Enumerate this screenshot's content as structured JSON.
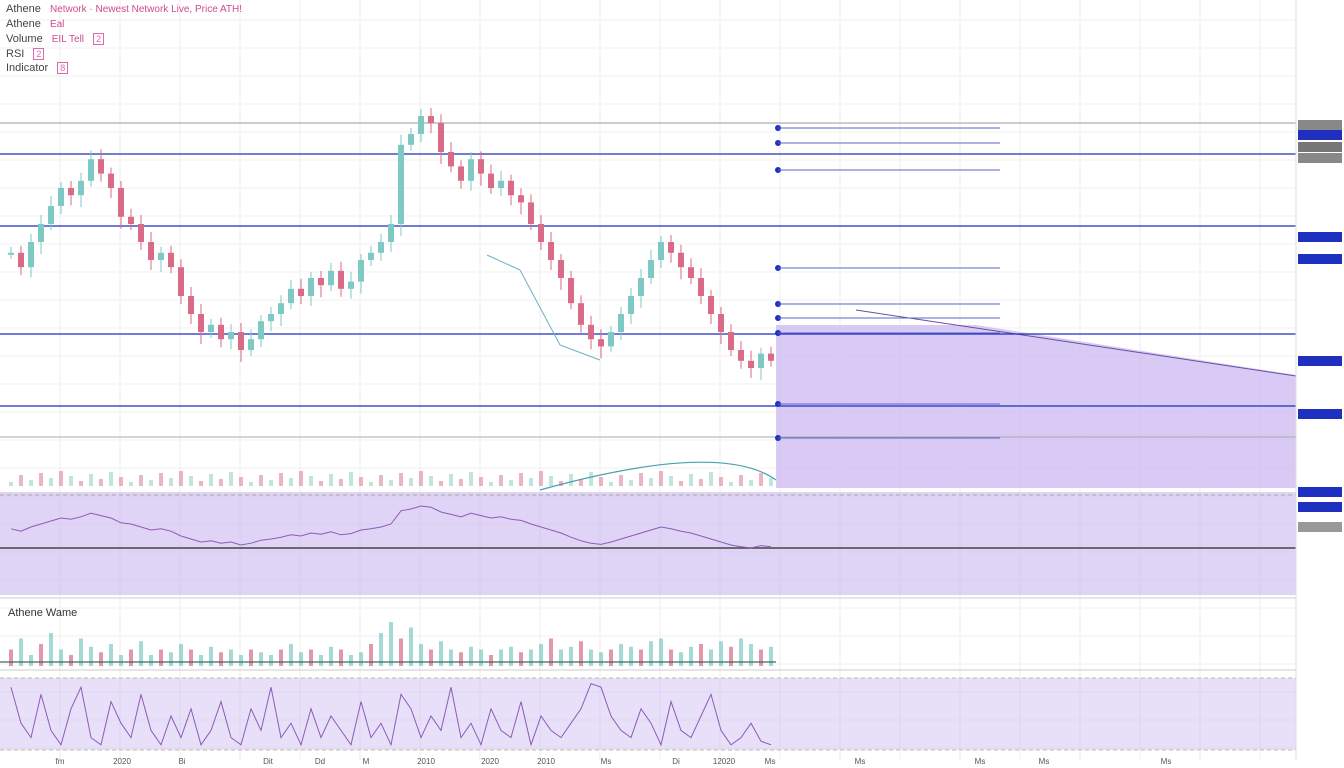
{
  "header": {
    "lines": [
      {
        "symbol": "Athene",
        "text": "Network · Newest Network Live, Price ATH!",
        "vals": "",
        "badge": ""
      },
      {
        "symbol": "Athene",
        "text": "",
        "vals": "Eal",
        "badge": ""
      },
      {
        "symbol": "Volume",
        "text": "",
        "vals": "EIL Tell",
        "badge": "2"
      },
      {
        "symbol": "RSI",
        "text": "",
        "vals": "",
        "badge": "2"
      },
      {
        "symbol": "Indicator",
        "text": "",
        "vals": "",
        "badge": "8"
      }
    ]
  },
  "panes": {
    "volume_label": "Athene Wame"
  },
  "price_axis": {
    "labels": [
      "",
      "",
      "",
      "",
      "",
      "",
      "",
      "",
      "",
      "",
      "",
      "",
      "",
      "",
      "",
      "",
      "",
      "",
      "",
      ""
    ]
  },
  "time_axis": {
    "labels": [
      "fm",
      "2020",
      "Bi",
      "Dit",
      "Dd",
      "M",
      "2010",
      "2020",
      "2010",
      "Ms",
      "Di",
      "12020",
      "Ms",
      "Ms",
      "Ms",
      "Ms",
      "Ms"
    ]
  },
  "colors": {
    "up": "#7fc9c4",
    "down": "#d96b86",
    "line_blue": "#1f2fbf",
    "purple_fill": "#cbb8f0",
    "rsi_line": "#8c5bb8",
    "gray_line": "#888888"
  },
  "chart_data": {
    "type": "candlestick",
    "note": "",
    "candles_close_shape": [
      0.52,
      0.48,
      0.55,
      0.6,
      0.65,
      0.7,
      0.68,
      0.72,
      0.78,
      0.74,
      0.7,
      0.62,
      0.6,
      0.55,
      0.5,
      0.52,
      0.48,
      0.4,
      0.35,
      0.3,
      0.32,
      0.28,
      0.3,
      0.25,
      0.28,
      0.33,
      0.35,
      0.38,
      0.42,
      0.4,
      0.45,
      0.43,
      0.47,
      0.42,
      0.44,
      0.5,
      0.52,
      0.55,
      0.6,
      0.82,
      0.85,
      0.9,
      0.88,
      0.8,
      0.76,
      0.72,
      0.78,
      0.74,
      0.7,
      0.72,
      0.68,
      0.66,
      0.6,
      0.55,
      0.5,
      0.45,
      0.38,
      0.32,
      0.28,
      0.26,
      0.3,
      0.35,
      0.4,
      0.45,
      0.5,
      0.55,
      0.52,
      0.48,
      0.45,
      0.4,
      0.35,
      0.3,
      0.25,
      0.22,
      0.2,
      0.24,
      0.22
    ],
    "volume_shape": [
      0.3,
      0.5,
      0.2,
      0.4,
      0.6,
      0.3,
      0.2,
      0.5,
      0.35,
      0.25,
      0.4,
      0.2,
      0.3,
      0.45,
      0.2,
      0.3,
      0.25,
      0.4,
      0.3,
      0.2,
      0.35,
      0.25,
      0.3,
      0.2,
      0.3,
      0.25,
      0.2,
      0.3,
      0.4,
      0.25,
      0.3,
      0.2,
      0.35,
      0.3,
      0.2,
      0.25,
      0.4,
      0.6,
      0.8,
      0.5,
      0.7,
      0.4,
      0.3,
      0.45,
      0.3,
      0.25,
      0.35,
      0.3,
      0.2,
      0.3,
      0.35,
      0.25,
      0.3,
      0.4,
      0.5,
      0.3,
      0.35,
      0.45,
      0.3,
      0.25,
      0.3,
      0.4,
      0.35,
      0.3,
      0.45,
      0.5,
      0.3,
      0.25,
      0.35,
      0.4,
      0.3,
      0.45,
      0.35,
      0.5,
      0.4,
      0.3,
      0.35
    ],
    "rsi_shape": [
      0.9,
      0.4,
      0.2,
      0.8,
      0.3,
      0.1,
      0.6,
      0.9,
      0.2,
      0.1,
      0.7,
      0.4,
      0.2,
      0.8,
      0.3,
      0.1,
      0.5,
      0.2,
      0.6,
      0.1,
      0.3,
      0.7,
      0.2,
      0.1,
      0.6,
      0.3,
      0.9,
      0.2,
      0.4,
      0.1,
      0.6,
      0.2,
      0.5,
      0.3,
      0.1,
      0.7,
      0.2,
      0.4,
      0.1,
      0.8,
      0.6,
      0.2,
      0.5,
      0.3,
      0.9,
      0.2,
      0.4,
      0.1,
      0.6,
      0.3,
      0.2,
      0.7,
      0.1,
      0.5,
      0.3,
      0.2,
      0.4,
      0.6,
      0.95,
      0.9,
      0.5,
      0.3,
      0.2,
      0.6,
      0.4,
      0.1,
      0.7,
      0.3,
      0.2,
      0.5,
      0.8,
      0.3,
      0.1,
      0.2,
      0.4,
      0.15,
      0.1
    ],
    "horizontal_levels": [
      0.85,
      0.65,
      0.35,
      0.15
    ],
    "title": "",
    "xlabel": "",
    "ylabel": ""
  }
}
